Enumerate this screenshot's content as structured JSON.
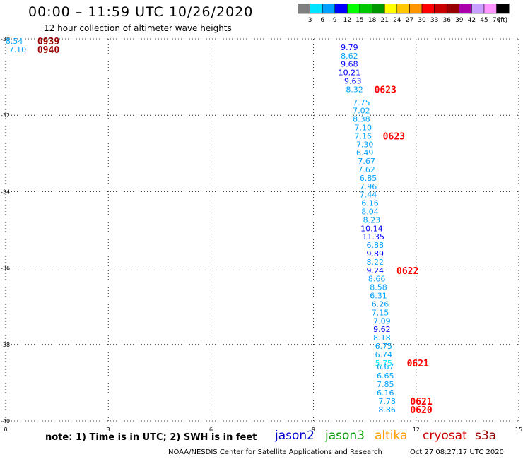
{
  "header": {
    "title": "00:00 – 11:59 UTC 10/26/2020",
    "subtitle": "12 hour collection of altimeter wave heights"
  },
  "colorbar": {
    "labels": [
      "3",
      "6",
      "9",
      "12",
      "15",
      "18",
      "21",
      "24",
      "27",
      "30",
      "33",
      "36",
      "39",
      "42",
      "45",
      "70"
    ],
    "unit": "(ft)",
    "colors": [
      "#808080",
      "#00e5ff",
      "#00a0ff",
      "#0000ff",
      "#00ff00",
      "#00c800",
      "#009600",
      "#ffff00",
      "#ffc800",
      "#ff9600",
      "#ff0000",
      "#c80000",
      "#960000",
      "#aa00aa",
      "#c8a0ff",
      "#ff96ff",
      "#000000"
    ]
  },
  "legend": {
    "note": "note:  1) Time is in UTC;  2) SWH is in feet",
    "satellites": [
      {
        "name": "jason2",
        "color": "#0000cc"
      },
      {
        "name": "jason3",
        "color": "#009900"
      },
      {
        "name": "altika",
        "color": "#ff9900"
      },
      {
        "name": "cryosat",
        "color": "#cc0000"
      },
      {
        "name": "s3a",
        "color": "#990000"
      }
    ]
  },
  "footer": {
    "source": "NOAA/NESDIS Center for Satellite Applications and Research",
    "timestamp": "Oct 27 08:27:17 UTC 2020"
  },
  "chart_data": {
    "type": "scatter",
    "title": "00:00 – 11:59 UTC 10/26/2020",
    "xlim": [
      0,
      15
    ],
    "ylim": [
      -40,
      -30
    ],
    "xticks": [
      "0",
      "3",
      "6",
      "9",
      "12",
      "15"
    ],
    "yticks": [
      "-30",
      "-32",
      "-34",
      "-36",
      "-38",
      "-40"
    ],
    "grid": true,
    "points": [
      {
        "x": 0.25,
        "y": -30.06,
        "label": "8.54",
        "color": "#00a0ff"
      },
      {
        "x": 0.35,
        "y": -30.28,
        "label": "7.10",
        "color": "#00a0ff"
      },
      {
        "x": 10.05,
        "y": -30.22,
        "label": "9.79",
        "color": "#0000ff"
      },
      {
        "x": 10.05,
        "y": -30.44,
        "label": "8.62",
        "color": "#00a0ff"
      },
      {
        "x": 10.05,
        "y": -30.66,
        "label": "9.68",
        "color": "#0000ff"
      },
      {
        "x": 10.05,
        "y": -30.88,
        "label": "10.21",
        "color": "#0000ff"
      },
      {
        "x": 10.15,
        "y": -31.1,
        "label": "9.63",
        "color": "#0000ff"
      },
      {
        "x": 10.2,
        "y": -31.32,
        "label": "8.32",
        "color": "#00a0ff"
      },
      {
        "x": 10.4,
        "y": -31.66,
        "label": "7.75",
        "color": "#00a0ff"
      },
      {
        "x": 10.4,
        "y": -31.88,
        "label": "7.02",
        "color": "#00a0ff"
      },
      {
        "x": 10.4,
        "y": -32.1,
        "label": "8.38",
        "color": "#00a0ff"
      },
      {
        "x": 10.45,
        "y": -32.32,
        "label": "7.10",
        "color": "#00a0ff"
      },
      {
        "x": 10.45,
        "y": -32.54,
        "label": "7.16",
        "color": "#00a0ff"
      },
      {
        "x": 10.5,
        "y": -32.76,
        "label": "7.30",
        "color": "#00a0ff"
      },
      {
        "x": 10.5,
        "y": -32.98,
        "label": "6.49",
        "color": "#00a0ff"
      },
      {
        "x": 10.55,
        "y": -33.2,
        "label": "7.67",
        "color": "#00a0ff"
      },
      {
        "x": 10.55,
        "y": -33.42,
        "label": "7.62",
        "color": "#00a0ff"
      },
      {
        "x": 10.6,
        "y": -33.64,
        "label": "6.85",
        "color": "#00a0ff"
      },
      {
        "x": 10.6,
        "y": -33.86,
        "label": "7.96",
        "color": "#00a0ff"
      },
      {
        "x": 10.6,
        "y": -34.08,
        "label": "7.44",
        "color": "#00a0ff"
      },
      {
        "x": 10.65,
        "y": -34.3,
        "label": "6.16",
        "color": "#00a0ff"
      },
      {
        "x": 10.65,
        "y": -34.52,
        "label": "8.04",
        "color": "#00a0ff"
      },
      {
        "x": 10.7,
        "y": -34.74,
        "label": "8.23",
        "color": "#00a0ff"
      },
      {
        "x": 10.7,
        "y": -34.96,
        "label": "10.14",
        "color": "#0000ff"
      },
      {
        "x": 10.75,
        "y": -35.18,
        "label": "11.35",
        "color": "#0000ff"
      },
      {
        "x": 10.8,
        "y": -35.4,
        "label": "6.88",
        "color": "#00a0ff"
      },
      {
        "x": 10.8,
        "y": -35.62,
        "label": "9.89",
        "color": "#0000ff"
      },
      {
        "x": 10.8,
        "y": -35.84,
        "label": "8.22",
        "color": "#00a0ff"
      },
      {
        "x": 10.8,
        "y": -36.06,
        "label": "9.24",
        "color": "#0000ff"
      },
      {
        "x": 10.85,
        "y": -36.28,
        "label": "8.66",
        "color": "#00a0ff"
      },
      {
        "x": 10.9,
        "y": -36.5,
        "label": "8.58",
        "color": "#00a0ff"
      },
      {
        "x": 10.9,
        "y": -36.72,
        "label": "6.31",
        "color": "#00a0ff"
      },
      {
        "x": 10.95,
        "y": -36.94,
        "label": "6.26",
        "color": "#00a0ff"
      },
      {
        "x": 10.95,
        "y": -37.16,
        "label": "7.15",
        "color": "#00a0ff"
      },
      {
        "x": 11.0,
        "y": -37.38,
        "label": "7.09",
        "color": "#00a0ff"
      },
      {
        "x": 11.0,
        "y": -37.6,
        "label": "9.62",
        "color": "#0000ff"
      },
      {
        "x": 11.0,
        "y": -37.82,
        "label": "8.18",
        "color": "#00a0ff"
      },
      {
        "x": 11.05,
        "y": -38.04,
        "label": "6.75",
        "color": "#00a0ff"
      },
      {
        "x": 11.05,
        "y": -38.26,
        "label": "6.74",
        "color": "#00a0ff"
      },
      {
        "x": 11.05,
        "y": -38.48,
        "label": "5.75",
        "color": "#00e5ff"
      },
      {
        "x": 11.1,
        "y": -38.58,
        "label": "6.67",
        "color": "#00a0ff"
      },
      {
        "x": 11.1,
        "y": -38.82,
        "label": "6.65",
        "color": "#00a0ff"
      },
      {
        "x": 11.1,
        "y": -39.04,
        "label": "7.85",
        "color": "#00a0ff"
      },
      {
        "x": 11.1,
        "y": -39.26,
        "label": "6.16",
        "color": "#00a0ff"
      },
      {
        "x": 11.15,
        "y": -39.48,
        "label": "7.78",
        "color": "#00a0ff"
      },
      {
        "x": 11.15,
        "y": -39.7,
        "label": "8.86",
        "color": "#00a0ff"
      }
    ],
    "time_labels": [
      {
        "x": 1.25,
        "y": -30.06,
        "label": "0939",
        "color": "#990000"
      },
      {
        "x": 1.25,
        "y": -30.28,
        "label": "0940",
        "color": "#990000"
      },
      {
        "x": 11.1,
        "y": -31.32,
        "label": "0623",
        "color": "#ff0000"
      },
      {
        "x": 11.35,
        "y": -32.54,
        "label": "0623",
        "color": "#ff0000"
      },
      {
        "x": 11.75,
        "y": -36.06,
        "label": "0622",
        "color": "#ff0000"
      },
      {
        "x": 12.05,
        "y": -38.48,
        "label": "0621",
        "color": "#ff0000"
      },
      {
        "x": 12.15,
        "y": -39.48,
        "label": "0621",
        "color": "#ff0000"
      },
      {
        "x": 12.15,
        "y": -39.7,
        "label": "0620",
        "color": "#ff0000"
      }
    ]
  }
}
